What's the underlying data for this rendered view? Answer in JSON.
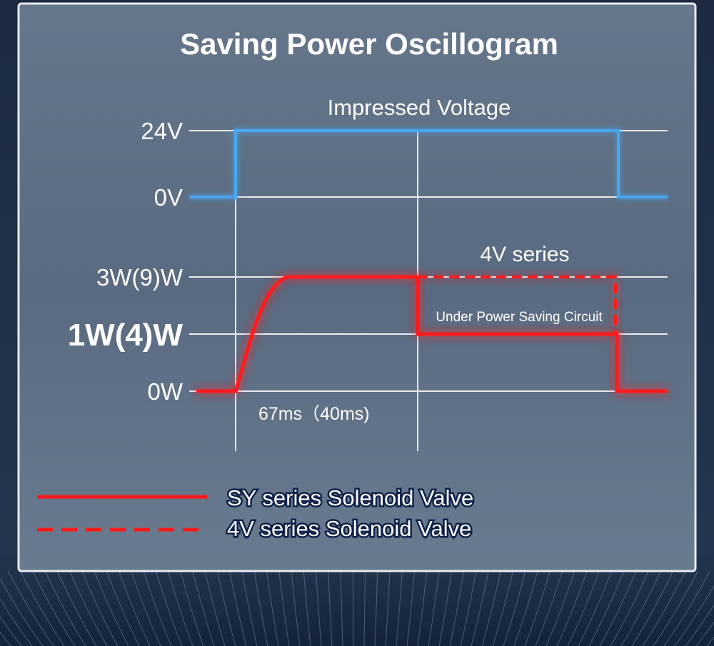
{
  "title": "Saving Power Oscillogram",
  "voltage_section": {
    "label": "Impressed Voltage",
    "y_labels": [
      "24V",
      "0V"
    ]
  },
  "power_section": {
    "y_labels": [
      "3W(9)W",
      "1W(4)W",
      "0W"
    ],
    "series_note": "4V series",
    "saving_note": "Under Power Saving Circuit",
    "rise_time": "67ms（40ms)"
  },
  "legend": [
    {
      "label": "SY series Solenoid Valve",
      "style": "solid"
    },
    {
      "label": "4V series Solenoid Valve",
      "style": "dashed"
    }
  ],
  "colors": {
    "voltage_trace": "#4aa6f0",
    "power_trace": "#ff1a1a",
    "grid": "#e8ecf2",
    "panel": "#5b6b80",
    "background": "#0e1a2c"
  }
}
